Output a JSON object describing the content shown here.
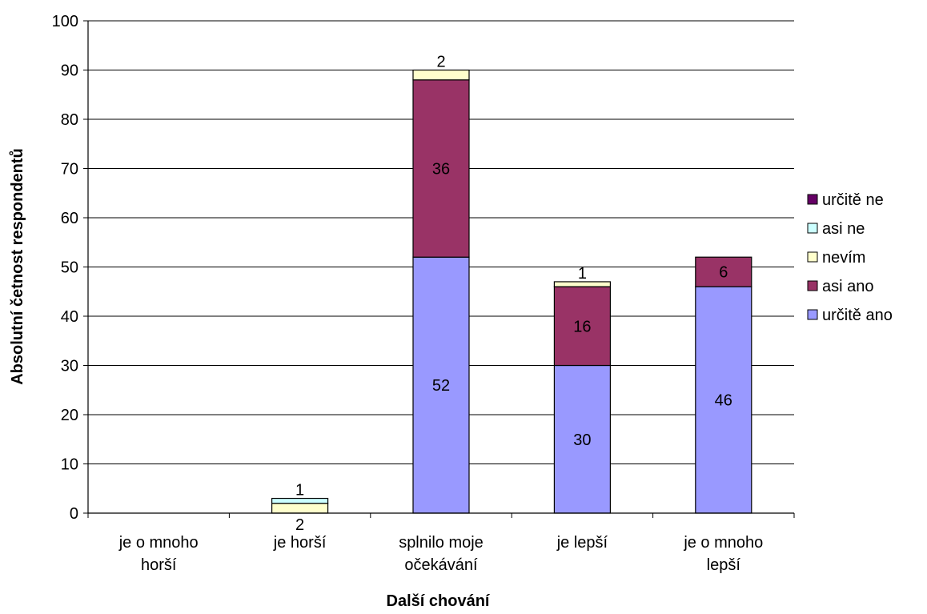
{
  "chart_data": {
    "type": "bar",
    "stacked": true,
    "xlabel": "Další chování",
    "ylabel": "Absolutní četnost respondentů",
    "ylim": [
      0,
      100
    ],
    "yticks": [
      0,
      10,
      20,
      30,
      40,
      50,
      60,
      70,
      80,
      90,
      100
    ],
    "grid": true,
    "legend": "right",
    "categories": [
      [
        "je o mnoho",
        "horší"
      ],
      [
        "je horší"
      ],
      [
        "splnilo moje",
        "očekávání"
      ],
      [
        "je lepší"
      ],
      [
        "je o mnoho",
        "lepší"
      ]
    ],
    "series": [
      {
        "name": "určitě ano",
        "color": "#9999FF",
        "values": [
          0,
          0,
          52,
          30,
          46
        ]
      },
      {
        "name": "asi ano",
        "color": "#993366",
        "values": [
          0,
          0,
          36,
          16,
          6
        ]
      },
      {
        "name": "nevím",
        "color": "#FFFFCC",
        "values": [
          0,
          2,
          2,
          1,
          0
        ]
      },
      {
        "name": "asi ne",
        "color": "#CCFFFF",
        "values": [
          0,
          1,
          0,
          0,
          0
        ]
      },
      {
        "name": "určitě ne",
        "color": "#660066",
        "values": [
          0,
          0,
          0,
          0,
          0
        ]
      }
    ]
  }
}
